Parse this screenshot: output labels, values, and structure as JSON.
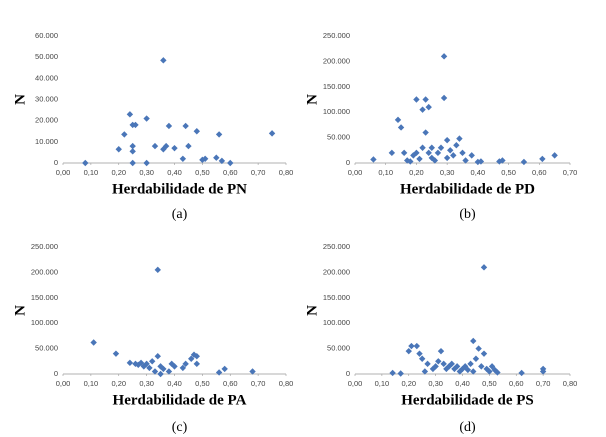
{
  "chart_data": [
    {
      "type": "scatter",
      "ylabel": "N",
      "xlabel": "Herdabilidade de PN",
      "caption": "(a)",
      "color": "#4a76b8",
      "xlim": [
        0,
        0.8
      ],
      "ylim": [
        0,
        60000
      ],
      "xticks": [
        {
          "value": 0,
          "label": "0,00"
        },
        {
          "value": 0.1,
          "label": "0,10"
        },
        {
          "value": 0.2,
          "label": "0,20"
        },
        {
          "value": 0.3,
          "label": "0,30"
        },
        {
          "value": 0.4,
          "label": "0,40"
        },
        {
          "value": 0.5,
          "label": "0,50"
        },
        {
          "value": 0.6,
          "label": "0,60"
        },
        {
          "value": 0.7,
          "label": "0,70"
        },
        {
          "value": 0.8,
          "label": "0,80"
        }
      ],
      "yticks": [
        0,
        {
          "value": 10000,
          "label": "10.000"
        },
        {
          "value": 20000,
          "label": "20.000"
        },
        {
          "value": 30000,
          "label": "30.000"
        },
        {
          "value": 40000,
          "label": "40.000"
        },
        {
          "value": 50000,
          "label": "50.000"
        },
        {
          "value": 60000,
          "label": "60.000"
        }
      ],
      "x": [
        0.08,
        0.2,
        0.22,
        0.24,
        0.25,
        0.26,
        0.25,
        0.25,
        0.25,
        0.3,
        0.3,
        0.33,
        0.36,
        0.36,
        0.37,
        0.38,
        0.4,
        0.43,
        0.44,
        0.45,
        0.48,
        0.5,
        0.51,
        0.55,
        0.56,
        0.57,
        0.6,
        0.75
      ],
      "values": [
        0,
        6500,
        13500,
        23000,
        18000,
        18000,
        8000,
        5500,
        0,
        21000,
        0,
        8000,
        48500,
        6500,
        8000,
        17500,
        7000,
        2000,
        17500,
        8000,
        15000,
        1500,
        2000,
        2500,
        13500,
        1000,
        0,
        14000
      ]
    },
    {
      "type": "scatter",
      "ylabel": "N",
      "xlabel": "Herdabilidade de PD",
      "caption": "(b)",
      "color": "#4a76b8",
      "xlim": [
        0,
        0.7
      ],
      "ylim": [
        0,
        250000
      ],
      "xticks": [
        {
          "value": 0,
          "label": "0,00"
        },
        {
          "value": 0.1,
          "label": "0,10"
        },
        {
          "value": 0.2,
          "label": "0,20"
        },
        {
          "value": 0.3,
          "label": "0,30"
        },
        {
          "value": 0.4,
          "label": "0,40"
        },
        {
          "value": 0.5,
          "label": "0,50"
        },
        {
          "value": 0.6,
          "label": "0,60"
        },
        {
          "value": 0.7,
          "label": "0,70"
        }
      ],
      "yticks": [
        0,
        {
          "value": 50000,
          "label": "50.000"
        },
        {
          "value": 100000,
          "label": "100.000"
        },
        {
          "value": 150000,
          "label": "150.000"
        },
        {
          "value": 200000,
          "label": "200.000"
        },
        {
          "value": 250000,
          "label": "250.000"
        }
      ],
      "x": [
        0.06,
        0.12,
        0.14,
        0.15,
        0.16,
        0.17,
        0.18,
        0.19,
        0.2,
        0.22,
        0.23,
        0.24,
        0.2,
        0.21,
        0.22,
        0.23,
        0.24,
        0.25,
        0.25,
        0.26,
        0.27,
        0.28,
        0.29,
        0.29,
        0.3,
        0.3,
        0.31,
        0.32,
        0.33,
        0.34,
        0.35,
        0.36,
        0.38,
        0.4,
        0.41,
        0.47,
        0.48,
        0.55,
        0.61,
        0.65
      ],
      "values": [
        7000,
        20000,
        85000,
        70000,
        20000,
        5000,
        3000,
        15000,
        125000,
        105000,
        125000,
        110000,
        20000,
        8000,
        30000,
        60000,
        20000,
        10000,
        30000,
        5000,
        20000,
        30000,
        210000,
        128000,
        45000,
        10000,
        25000,
        15000,
        35000,
        48000,
        20000,
        5000,
        15000,
        2000,
        3000,
        3000,
        5000,
        2000,
        8000,
        15000
      ]
    },
    {
      "type": "scatter",
      "ylabel": "N",
      "xlabel": "Herdabilidade de PA",
      "caption": "(c)",
      "color": "#4a76b8",
      "xlim": [
        0,
        0.8
      ],
      "ylim": [
        0,
        250000
      ],
      "xticks": [
        {
          "value": 0,
          "label": "0,00"
        },
        {
          "value": 0.1,
          "label": "0,10"
        },
        {
          "value": 0.2,
          "label": "0,20"
        },
        {
          "value": 0.3,
          "label": "0,30"
        },
        {
          "value": 0.4,
          "label": "0,40"
        },
        {
          "value": 0.5,
          "label": "0,50"
        },
        {
          "value": 0.6,
          "label": "0,60"
        },
        {
          "value": 0.7,
          "label": "0,70"
        },
        {
          "value": 0.8,
          "label": "0,80"
        }
      ],
      "yticks": [
        0,
        {
          "value": 50000,
          "label": "50.000"
        },
        {
          "value": 100000,
          "label": "100.000"
        },
        {
          "value": 150000,
          "label": "150.000"
        },
        {
          "value": 200000,
          "label": "200.000"
        },
        {
          "value": 250000,
          "label": "250.000"
        }
      ],
      "x": [
        0.11,
        0.19,
        0.24,
        0.26,
        0.27,
        0.28,
        0.29,
        0.3,
        0.31,
        0.32,
        0.33,
        0.34,
        0.34,
        0.35,
        0.36,
        0.38,
        0.39,
        0.4,
        0.43,
        0.44,
        0.46,
        0.47,
        0.48,
        0.48,
        0.56,
        0.58,
        0.68,
        0.35
      ],
      "values": [
        62000,
        40000,
        22000,
        20000,
        18000,
        22000,
        15000,
        20000,
        12000,
        25000,
        5000,
        205000,
        35000,
        15000,
        10000,
        5000,
        20000,
        15000,
        12000,
        20000,
        30000,
        38000,
        35000,
        20000,
        3000,
        10000,
        5000,
        0
      ]
    },
    {
      "type": "scatter",
      "ylabel": "N",
      "xlabel": "Herdabilidade de PS",
      "caption": "(d)",
      "color": "#4a76b8",
      "xlim": [
        0,
        0.8
      ],
      "ylim": [
        0,
        250000
      ],
      "xticks": [
        {
          "value": 0,
          "label": "0,00"
        },
        {
          "value": 0.1,
          "label": "0,10"
        },
        {
          "value": 0.2,
          "label": "0,20"
        },
        {
          "value": 0.3,
          "label": "0,30"
        },
        {
          "value": 0.4,
          "label": "0,40"
        },
        {
          "value": 0.5,
          "label": "0,50"
        },
        {
          "value": 0.6,
          "label": "0,60"
        },
        {
          "value": 0.7,
          "label": "0,70"
        },
        {
          "value": 0.8,
          "label": "0,80"
        }
      ],
      "yticks": [
        0,
        {
          "value": 50000,
          "label": "50.000"
        },
        {
          "value": 100000,
          "label": "100.000"
        },
        {
          "value": 150000,
          "label": "150.000"
        },
        {
          "value": 200000,
          "label": "200.000"
        },
        {
          "value": 250000,
          "label": "250.000"
        }
      ],
      "x": [
        0.14,
        0.17,
        0.2,
        0.21,
        0.23,
        0.24,
        0.25,
        0.26,
        0.27,
        0.29,
        0.3,
        0.31,
        0.32,
        0.33,
        0.34,
        0.35,
        0.36,
        0.37,
        0.38,
        0.39,
        0.4,
        0.41,
        0.42,
        0.43,
        0.44,
        0.44,
        0.45,
        0.46,
        0.47,
        0.48,
        0.48,
        0.49,
        0.5,
        0.51,
        0.52,
        0.53,
        0.62,
        0.7,
        0.7
      ],
      "values": [
        2000,
        1000,
        45000,
        55000,
        55000,
        40000,
        30000,
        5000,
        20000,
        10000,
        15000,
        25000,
        45000,
        20000,
        10000,
        15000,
        20000,
        10000,
        15000,
        5000,
        10000,
        15000,
        8000,
        20000,
        65000,
        5000,
        30000,
        50000,
        15000,
        210000,
        40000,
        10000,
        5000,
        15000,
        8000,
        3000,
        2000,
        10000,
        5000
      ]
    }
  ]
}
